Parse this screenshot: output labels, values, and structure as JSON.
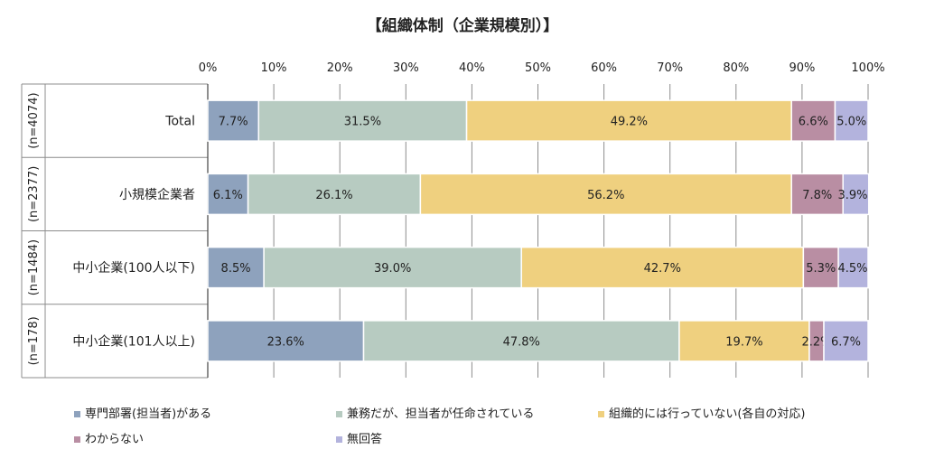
{
  "chart_data": {
    "type": "bar",
    "orientation": "horizontal",
    "stacked": true,
    "percent": true,
    "title": "【組織体制（企業規模別）】",
    "xlim": [
      0,
      100
    ],
    "xticks": [
      "0%",
      "10%",
      "20%",
      "30%",
      "40%",
      "50%",
      "60%",
      "70%",
      "80%",
      "90%",
      "100%"
    ],
    "grid": true,
    "legend_position": "bottom",
    "categories": [
      "Total",
      "小規模企業者",
      "中小企業(100人以下)",
      "中小企業(101人以上)"
    ],
    "sample_sizes": [
      "(n=4074)",
      "(n=2377)",
      "(n=1484)",
      "(n=178)"
    ],
    "series": [
      {
        "name": "専門部署(担当者)がある",
        "color": "#8ea2bd",
        "values": [
          7.7,
          6.1,
          8.5,
          23.6
        ],
        "labels": [
          "7.7%",
          "6.1%",
          "8.5%",
          "23.6%"
        ]
      },
      {
        "name": "兼務だが、担当者が任命されている",
        "color": "#b7cbc1",
        "values": [
          31.5,
          26.1,
          39.0,
          47.8
        ],
        "labels": [
          "31.5%",
          "26.1%",
          "39.0%",
          "47.8%"
        ]
      },
      {
        "name": "組織的には行っていない(各自の対応)",
        "color": "#efd07f",
        "values": [
          49.2,
          56.2,
          42.7,
          19.7
        ],
        "labels": [
          "49.2%",
          "56.2%",
          "42.7%",
          "19.7%"
        ]
      },
      {
        "name": "わからない",
        "color": "#b98ea3",
        "values": [
          6.6,
          7.8,
          5.3,
          2.2
        ],
        "labels": [
          "6.6%",
          "7.8%",
          "5.3%",
          "2.2%"
        ]
      },
      {
        "name": "無回答",
        "color": "#b3b3dd",
        "values": [
          5.0,
          3.9,
          4.5,
          6.7
        ],
        "labels": [
          "5.0%",
          "3.9%",
          "4.5%",
          "6.7%"
        ]
      }
    ]
  }
}
